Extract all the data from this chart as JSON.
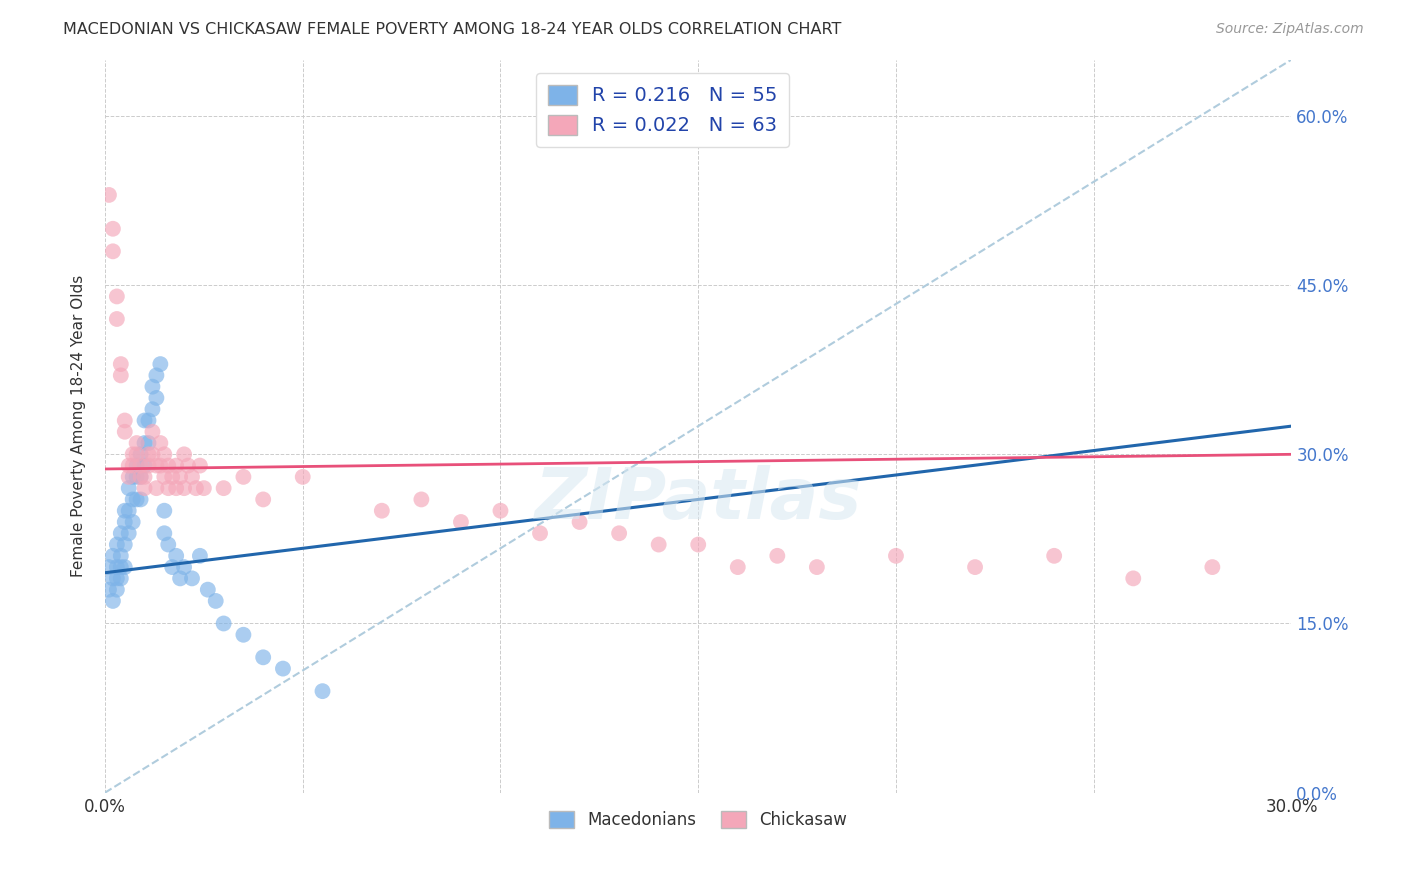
{
  "title": "MACEDONIAN VS CHICKASAW FEMALE POVERTY AMONG 18-24 YEAR OLDS CORRELATION CHART",
  "source": "Source: ZipAtlas.com",
  "ylabel": "Female Poverty Among 18-24 Year Olds",
  "xlabel_macedonians": "Macedonians",
  "xlabel_chickasaw": "Chickasaw",
  "R_macedonian": 0.216,
  "N_macedonian": 55,
  "R_chickasaw": 0.022,
  "N_chickasaw": 63,
  "xmin": 0.0,
  "xmax": 0.3,
  "ymin": 0.0,
  "ymax": 0.65,
  "yticks": [
    0.0,
    0.15,
    0.3,
    0.45,
    0.6
  ],
  "ytick_labels": [
    "0.0%",
    "15.0%",
    "30.0%",
    "45.0%",
    "60.0%"
  ],
  "xticks": [
    0.0,
    0.05,
    0.1,
    0.15,
    0.2,
    0.25,
    0.3
  ],
  "xtick_labels": [
    "0.0%",
    "",
    "",
    "",
    "",
    "",
    "30.0%"
  ],
  "color_macedonian": "#7EB3E8",
  "color_chickasaw": "#F4A7B9",
  "line_color_macedonian": "#2166AC",
  "line_color_chickasaw": "#E8507A",
  "dashed_line_color": "#B0CCDD",
  "background_color": "#FFFFFF",
  "watermark": "ZIPatlas",
  "mac_line_x0": 0.0,
  "mac_line_y0": 0.195,
  "mac_line_x1": 0.3,
  "mac_line_y1": 0.325,
  "chk_line_x0": 0.0,
  "chk_line_y0": 0.287,
  "chk_line_x1": 0.3,
  "chk_line_y1": 0.3,
  "macedonian_x": [
    0.001,
    0.001,
    0.002,
    0.002,
    0.002,
    0.003,
    0.003,
    0.003,
    0.003,
    0.004,
    0.004,
    0.004,
    0.004,
    0.005,
    0.005,
    0.005,
    0.005,
    0.006,
    0.006,
    0.006,
    0.007,
    0.007,
    0.007,
    0.008,
    0.008,
    0.008,
    0.009,
    0.009,
    0.009,
    0.01,
    0.01,
    0.01,
    0.011,
    0.011,
    0.012,
    0.012,
    0.013,
    0.013,
    0.014,
    0.015,
    0.015,
    0.016,
    0.017,
    0.018,
    0.019,
    0.02,
    0.022,
    0.024,
    0.026,
    0.028,
    0.03,
    0.035,
    0.04,
    0.045,
    0.055
  ],
  "macedonian_y": [
    0.2,
    0.18,
    0.21,
    0.19,
    0.17,
    0.22,
    0.2,
    0.19,
    0.18,
    0.23,
    0.21,
    0.2,
    0.19,
    0.25,
    0.24,
    0.22,
    0.2,
    0.27,
    0.25,
    0.23,
    0.28,
    0.26,
    0.24,
    0.29,
    0.28,
    0.26,
    0.3,
    0.28,
    0.26,
    0.33,
    0.31,
    0.29,
    0.33,
    0.31,
    0.36,
    0.34,
    0.37,
    0.35,
    0.38,
    0.25,
    0.23,
    0.22,
    0.2,
    0.21,
    0.19,
    0.2,
    0.19,
    0.21,
    0.18,
    0.17,
    0.15,
    0.14,
    0.12,
    0.11,
    0.09
  ],
  "chickasaw_x": [
    0.001,
    0.002,
    0.002,
    0.003,
    0.003,
    0.004,
    0.004,
    0.005,
    0.005,
    0.006,
    0.006,
    0.007,
    0.007,
    0.008,
    0.008,
    0.009,
    0.009,
    0.01,
    0.01,
    0.011,
    0.011,
    0.012,
    0.012,
    0.013,
    0.013,
    0.014,
    0.014,
    0.015,
    0.015,
    0.016,
    0.016,
    0.017,
    0.018,
    0.018,
    0.019,
    0.02,
    0.02,
    0.021,
    0.022,
    0.023,
    0.024,
    0.025,
    0.03,
    0.035,
    0.04,
    0.05,
    0.07,
    0.08,
    0.09,
    0.1,
    0.11,
    0.12,
    0.13,
    0.14,
    0.15,
    0.16,
    0.17,
    0.18,
    0.2,
    0.22,
    0.24,
    0.26,
    0.28
  ],
  "chickasaw_y": [
    0.53,
    0.5,
    0.48,
    0.44,
    0.42,
    0.38,
    0.37,
    0.33,
    0.32,
    0.29,
    0.28,
    0.3,
    0.29,
    0.31,
    0.3,
    0.29,
    0.28,
    0.28,
    0.27,
    0.3,
    0.29,
    0.32,
    0.3,
    0.29,
    0.27,
    0.31,
    0.29,
    0.3,
    0.28,
    0.29,
    0.27,
    0.28,
    0.29,
    0.27,
    0.28,
    0.27,
    0.3,
    0.29,
    0.28,
    0.27,
    0.29,
    0.27,
    0.27,
    0.28,
    0.26,
    0.28,
    0.25,
    0.26,
    0.24,
    0.25,
    0.23,
    0.24,
    0.23,
    0.22,
    0.22,
    0.2,
    0.21,
    0.2,
    0.21,
    0.2,
    0.21,
    0.19,
    0.2
  ]
}
